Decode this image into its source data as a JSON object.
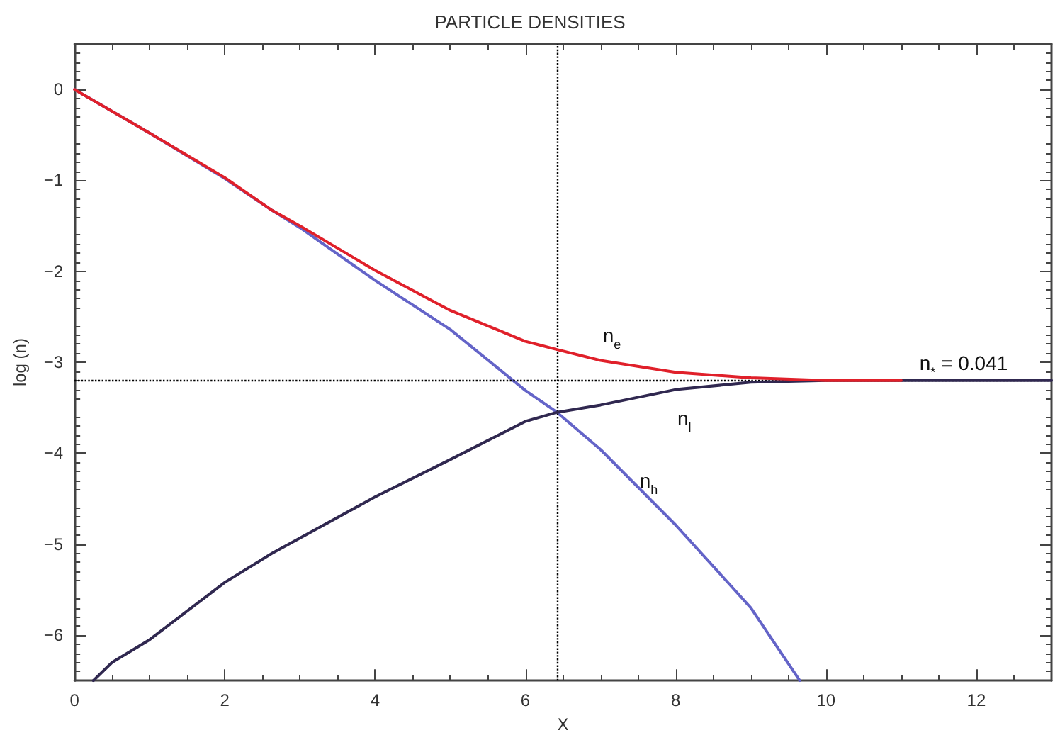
{
  "chart_data": {
    "type": "line",
    "title": "PARTICLE DENSITIES",
    "xlabel": "X",
    "ylabel": "log (n)",
    "xlim": [
      0,
      13
    ],
    "xticks": [
      0,
      2,
      4,
      6,
      8,
      10,
      12
    ],
    "ylim": [
      -6.5,
      0.5
    ],
    "yticks": [
      -6,
      -5,
      -4,
      -3,
      -2,
      -1,
      0
    ],
    "grid": false,
    "marker": "none",
    "line_style": "solid",
    "series": [
      {
        "name": "n$_{e}$",
        "color": "#e0202a",
        "x": [
          0,
          1,
          2,
          2.63,
          3,
          4,
          5,
          6,
          6.42,
          7,
          8,
          9,
          10,
          11
        ],
        "values": [
          0,
          -0.48,
          -0.97,
          -1.33,
          -1.5,
          -1.99,
          -2.43,
          -2.77,
          -2.86,
          -2.98,
          -3.11,
          -3.17,
          -3.2,
          -3.2
        ]
      },
      {
        "name": "n$_{l}$",
        "color": "#302850",
        "x": [
          0.25,
          0.5,
          1,
          2,
          2.63,
          4,
          5,
          6,
          6.42,
          7,
          8,
          9,
          10,
          11,
          12,
          13
        ],
        "values": [
          -6.5,
          -6.3,
          -6.05,
          -5.42,
          -5.1,
          -4.48,
          -4.07,
          -3.65,
          -3.55,
          -3.47,
          -3.3,
          -3.22,
          -3.2,
          -3.2,
          -3.2,
          -3.2
        ]
      },
      {
        "name": "n$_{h}$",
        "color": "#6464c8",
        "x": [
          0,
          1,
          2,
          2.63,
          3,
          4,
          5,
          6,
          6.42,
          7,
          8,
          9,
          9.65
        ],
        "values": [
          0,
          -0.48,
          -0.98,
          -1.33,
          -1.52,
          -2.1,
          -2.64,
          -3.31,
          -3.55,
          -3.96,
          -4.79,
          -5.7,
          -6.5
        ]
      }
    ],
    "ref_lines": [
      {
        "axis": "x",
        "value": 6.42,
        "color": "#000000",
        "line_style": "dotted"
      },
      {
        "axis": "y",
        "value": -3.2,
        "color": "#000000",
        "line_style": "dotted"
      }
    ],
    "annotations": [
      "n$_{*}$ = 0.041"
    ]
  }
}
